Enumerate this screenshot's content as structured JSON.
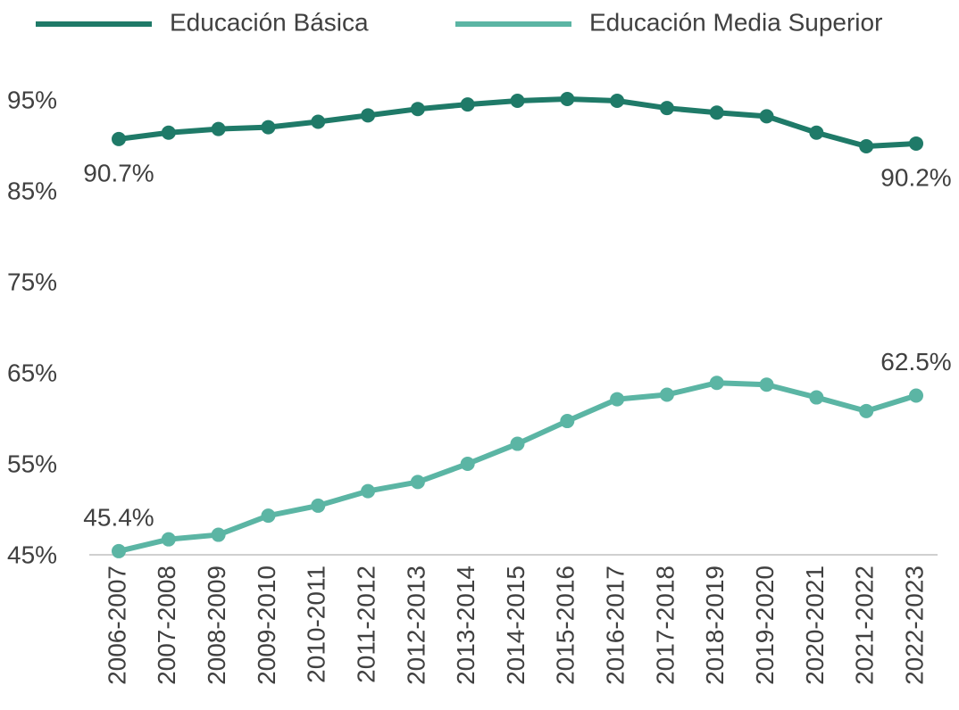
{
  "chart_data": {
    "type": "line",
    "categories": [
      "2006-2007",
      "2007-2008",
      "2008-2009",
      "2009-2010",
      "2010-2011",
      "2011-2012",
      "2012-2013",
      "2013-2014",
      "2014-2015",
      "2015-2016",
      "2016-2017",
      "2017-2018",
      "2018-2019",
      "2019-2020",
      "2020-2021",
      "2021-2022",
      "2022-2023"
    ],
    "series": [
      {
        "name": "Educación Básica",
        "color": "#1f7a68",
        "values": [
          90.7,
          91.4,
          91.8,
          92.0,
          92.6,
          93.3,
          94.0,
          94.5,
          94.9,
          95.1,
          94.9,
          94.1,
          93.6,
          93.2,
          91.4,
          89.9,
          90.2
        ],
        "value_labels": [
          "90.7%",
          null,
          null,
          null,
          null,
          null,
          null,
          null,
          null,
          null,
          null,
          null,
          null,
          null,
          null,
          null,
          "90.2%"
        ]
      },
      {
        "name": "Educación Media Superior",
        "color": "#5bb5a4",
        "values": [
          45.4,
          46.7,
          47.2,
          49.3,
          50.4,
          52.0,
          53.0,
          55.0,
          57.2,
          59.7,
          62.1,
          62.6,
          63.9,
          63.7,
          62.3,
          60.8,
          62.5
        ],
        "value_labels": [
          "45.4%",
          null,
          null,
          null,
          null,
          null,
          null,
          null,
          null,
          null,
          null,
          null,
          null,
          null,
          null,
          null,
          "62.5%"
        ]
      }
    ],
    "ylim": [
      45,
      97
    ],
    "yticks": [
      {
        "value": 45,
        "label": "45%"
      },
      {
        "value": 55,
        "label": "55%"
      },
      {
        "value": 65,
        "label": "65%"
      },
      {
        "value": 75,
        "label": "75%"
      },
      {
        "value": 85,
        "label": "85%"
      },
      {
        "value": 95,
        "label": "95%"
      }
    ],
    "grid": false,
    "legend": "top"
  }
}
